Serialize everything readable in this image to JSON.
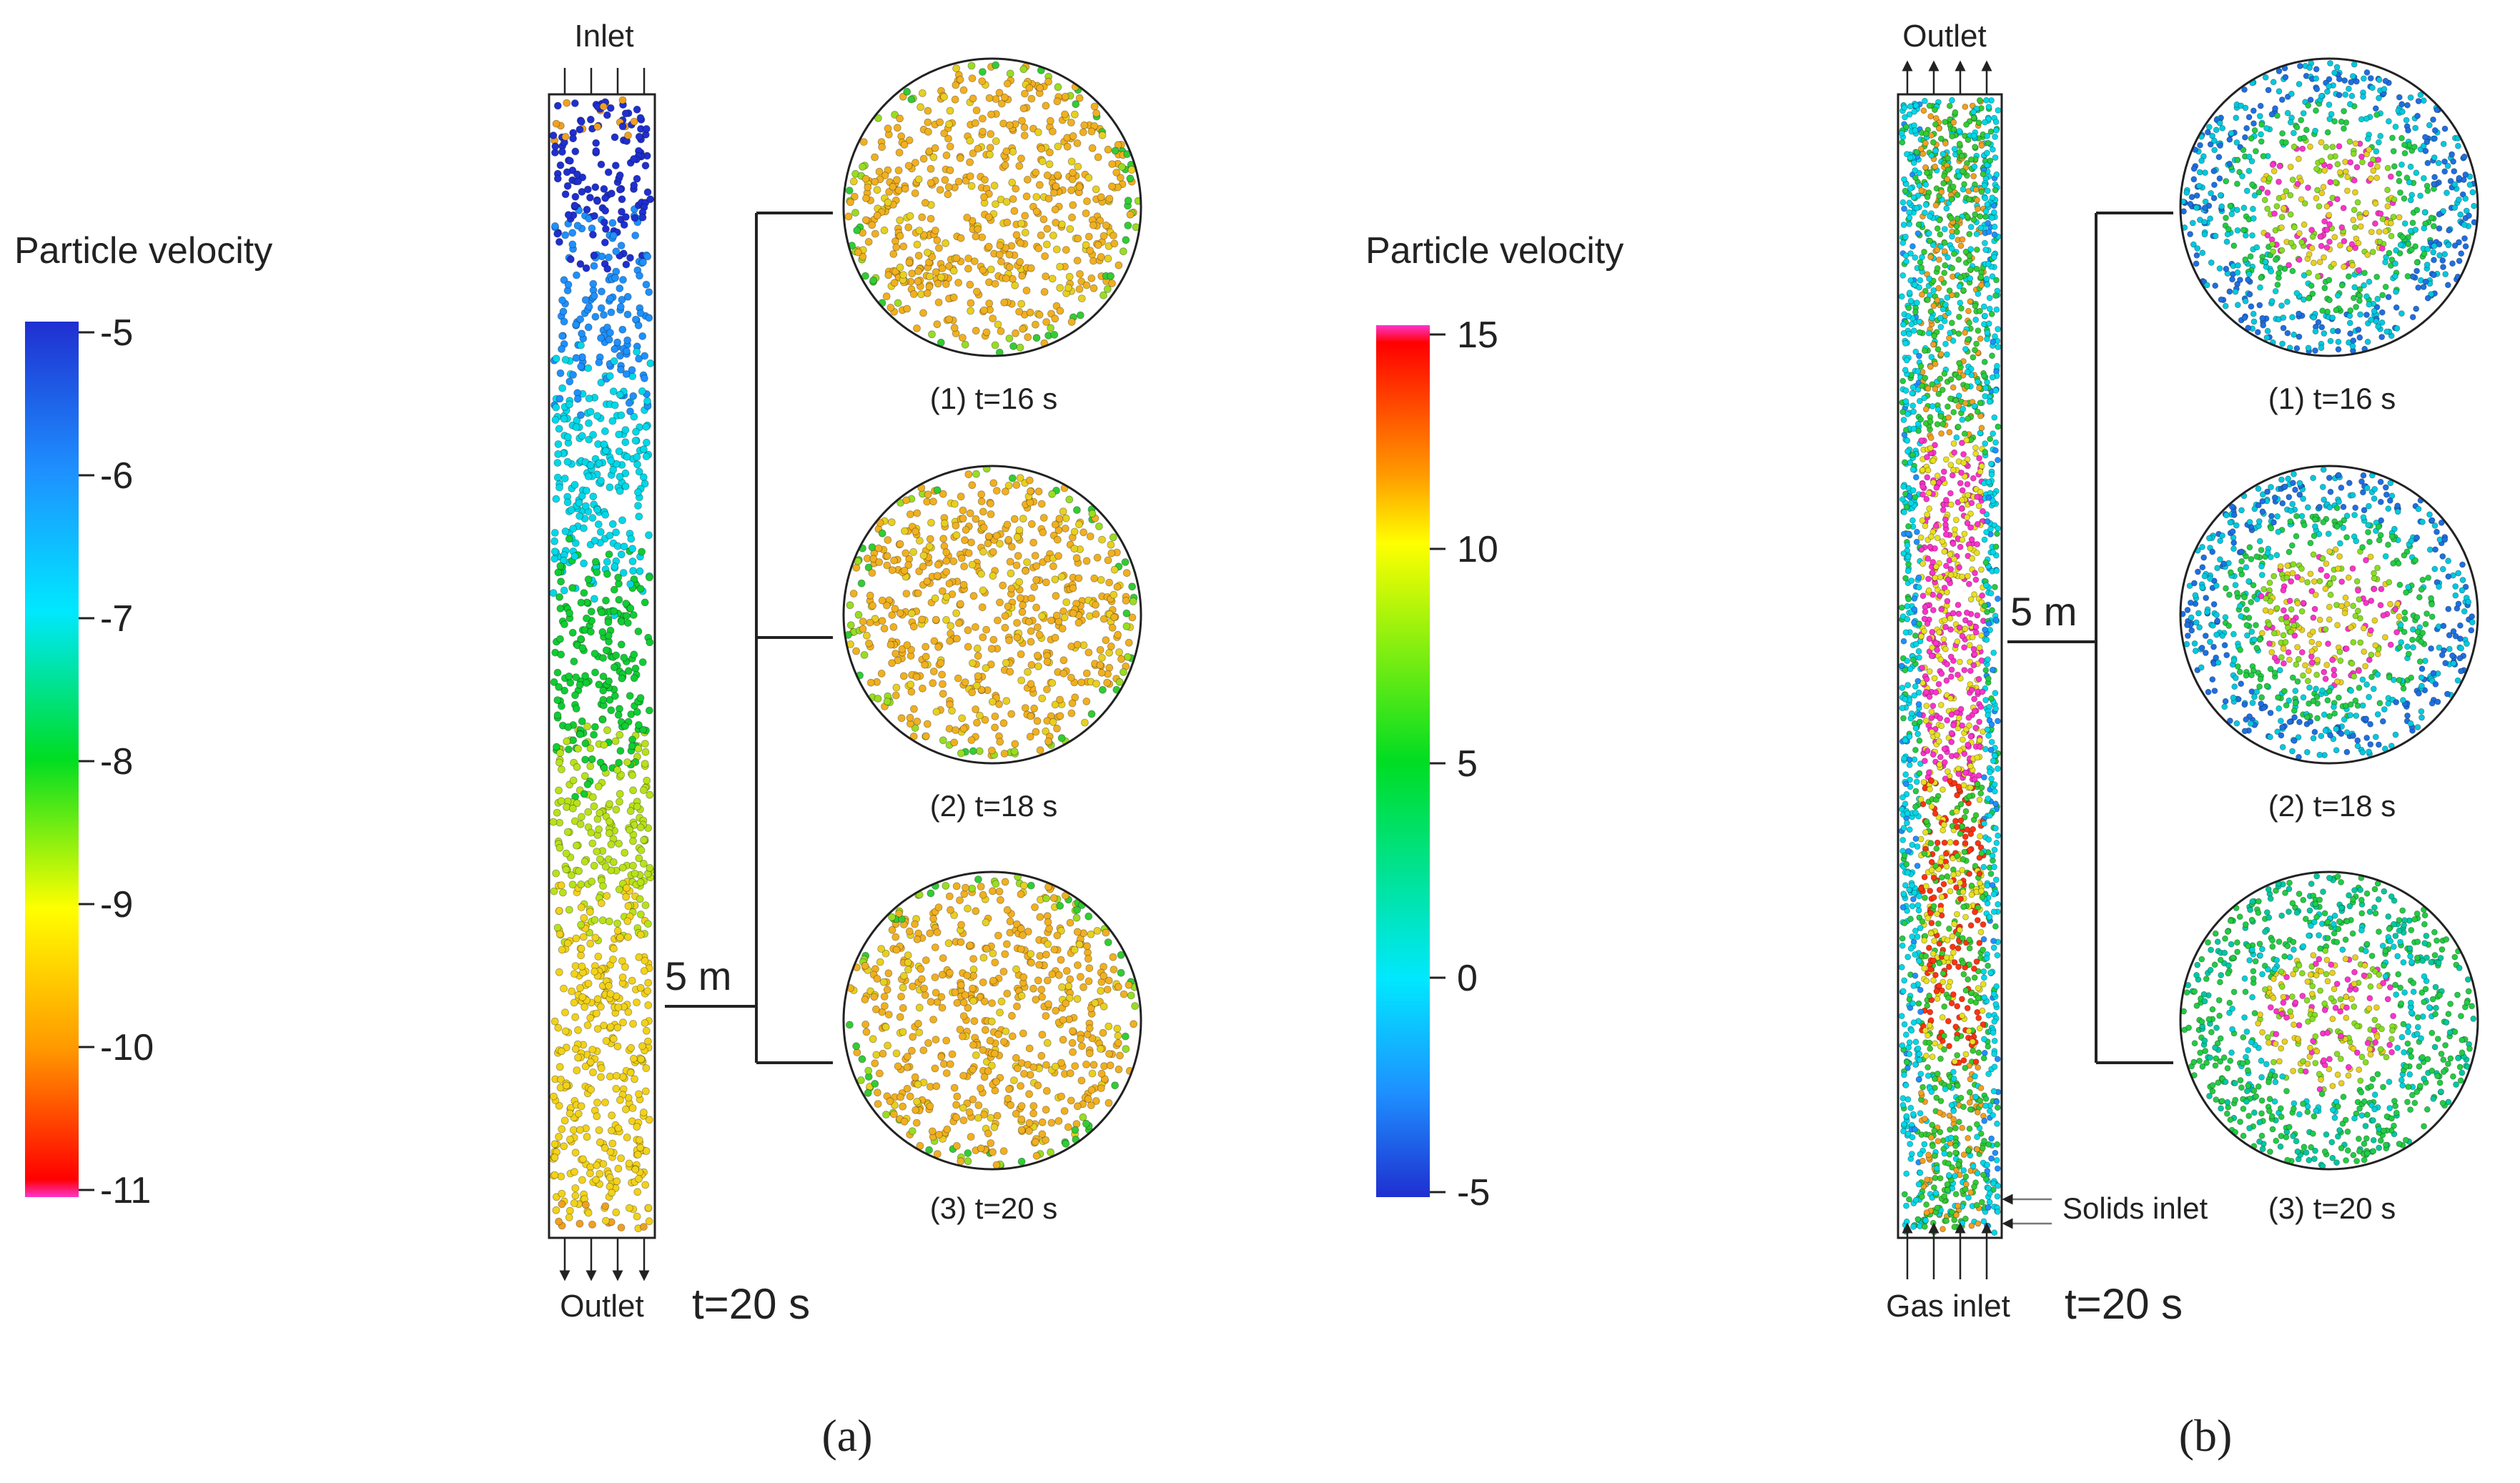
{
  "panel_a": {
    "label": "(a)",
    "colorbar": {
      "title": "Particle velocity",
      "ticks": [
        "-5",
        "-6",
        "-7",
        "-8",
        "-9",
        "-10",
        "-11"
      ],
      "range": [
        -11,
        -5
      ]
    },
    "column": {
      "top_label": "Inlet",
      "bottom_label": "Outlet",
      "time_label": "t=20 s",
      "height_label": "5 m"
    },
    "snapshots": [
      {
        "label": "(1) t=16 s"
      },
      {
        "label": "(2) t=18 s"
      },
      {
        "label": "(3) t=20 s"
      }
    ]
  },
  "panel_b": {
    "label": "(b)",
    "colorbar": {
      "title": "Particle velocity",
      "ticks": [
        "15",
        "10",
        "5",
        "0",
        "-5"
      ],
      "range": [
        -5,
        15
      ]
    },
    "column": {
      "top_label": "Outlet",
      "bottom_label": "Gas inlet",
      "side_label": "Solids inlet",
      "time_label": "t=20 s",
      "height_label": "5 m"
    },
    "snapshots": [
      {
        "label": "(1) t=16 s"
      },
      {
        "label": "(2) t=18 s"
      },
      {
        "label": "(3) t=20 s"
      }
    ]
  },
  "colors": {
    "frame": "#222222",
    "background": "#ffffff"
  }
}
